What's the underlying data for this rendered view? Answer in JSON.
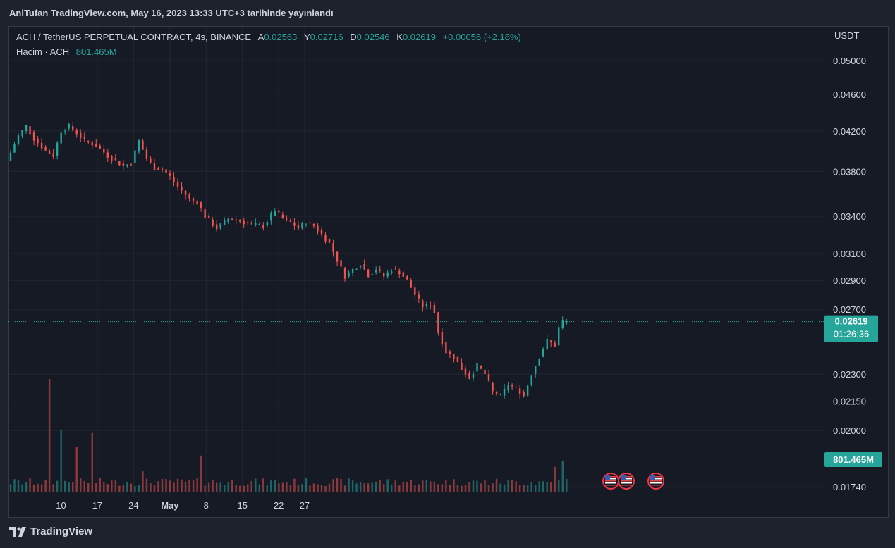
{
  "header": {
    "published": "AnlTufan TradingView.com, May 16, 2023 13:33 UTC+3 tarihinde yayınlandı"
  },
  "legend": {
    "symbol": "ACH / TetherUS PERPETUAL CONTRACT, 4s, BINANCE",
    "open_label": "A",
    "open_value": "0.02563",
    "high_label": "Y",
    "high_value": "0.02716",
    "low_label": "D",
    "low_value": "0.02546",
    "close_label": "K",
    "close_value": "0.02619",
    "change": "+0.00056 (+2.18%)",
    "volume_label": "Hacim · ACH",
    "volume_value": "801.465M"
  },
  "price_axis": {
    "currency": "USDT",
    "ticks": [
      "0.05000",
      "0.04600",
      "0.04200",
      "0.03800",
      "0.03400",
      "0.03100",
      "0.02900",
      "0.02700",
      "0.02300",
      "0.02150",
      "0.02000",
      "0.01740"
    ],
    "last_price": "0.02619",
    "countdown": "01:26:36",
    "volume_badge": "801.465M"
  },
  "time_axis": {
    "ticks": [
      "10",
      "17",
      "24",
      "May",
      "8",
      "15",
      "22",
      "27"
    ]
  },
  "footer": {
    "brand": "TradingView"
  },
  "colors": {
    "up": "#26a69a",
    "down": "#ef5350",
    "bg": "#161a25",
    "grid": "#252934"
  },
  "chart_data": {
    "type": "candlestick",
    "title": "ACH / TetherUS PERPETUAL CONTRACT, 4s, BINANCE",
    "ylabel": "USDT",
    "scale": "log",
    "ylim": [
      0.017,
      0.052
    ],
    "x_ticks": [
      "10",
      "17",
      "24",
      "May",
      "8",
      "15",
      "22",
      "27"
    ],
    "price_path": [
      [
        0,
        0.039
      ],
      [
        3,
        0.0415
      ],
      [
        5,
        0.0425
      ],
      [
        7,
        0.0412
      ],
      [
        10,
        0.04
      ],
      [
        12,
        0.0395
      ],
      [
        14,
        0.042
      ],
      [
        16,
        0.0425
      ],
      [
        18,
        0.0418
      ],
      [
        20,
        0.041
      ],
      [
        23,
        0.0405
      ],
      [
        26,
        0.0395
      ],
      [
        28,
        0.039
      ],
      [
        30,
        0.0385
      ],
      [
        32,
        0.0388
      ],
      [
        34,
        0.041
      ],
      [
        36,
        0.0392
      ],
      [
        38,
        0.0383
      ],
      [
        40,
        0.0382
      ],
      [
        42,
        0.0375
      ],
      [
        44,
        0.0366
      ],
      [
        47,
        0.0355
      ],
      [
        49,
        0.0352
      ],
      [
        51,
        0.034
      ],
      [
        54,
        0.033
      ],
      [
        57,
        0.0338
      ],
      [
        60,
        0.0336
      ],
      [
        63,
        0.0333
      ],
      [
        66,
        0.0332
      ],
      [
        69,
        0.0345
      ],
      [
        71,
        0.0338
      ],
      [
        73,
        0.0335
      ],
      [
        75,
        0.033
      ],
      [
        77,
        0.0335
      ],
      [
        79,
        0.0332
      ],
      [
        81,
        0.0325
      ],
      [
        83,
        0.0318
      ],
      [
        85,
        0.0305
      ],
      [
        87,
        0.0293
      ],
      [
        89,
        0.0298
      ],
      [
        91,
        0.0302
      ],
      [
        93,
        0.0294
      ],
      [
        95,
        0.0298
      ],
      [
        97,
        0.0293
      ],
      [
        99,
        0.0298
      ],
      [
        101,
        0.0296
      ],
      [
        103,
        0.029
      ],
      [
        105,
        0.028
      ],
      [
        107,
        0.0272
      ],
      [
        109,
        0.0273
      ],
      [
        110,
        0.0268
      ],
      [
        111,
        0.0255
      ],
      [
        113,
        0.0243
      ],
      [
        115,
        0.024
      ],
      [
        117,
        0.0233
      ],
      [
        119,
        0.0228
      ],
      [
        121,
        0.0235
      ],
      [
        123,
        0.023
      ],
      [
        125,
        0.022
      ],
      [
        127,
        0.0218
      ],
      [
        129,
        0.0224
      ],
      [
        131,
        0.0222
      ],
      [
        133,
        0.0218
      ],
      [
        135,
        0.023
      ],
      [
        137,
        0.024
      ],
      [
        139,
        0.025
      ],
      [
        141,
        0.0247
      ],
      [
        142,
        0.0258
      ],
      [
        143,
        0.02619
      ]
    ],
    "volume": {
      "latest": "801.465M",
      "spike_bars": [
        [
          10,
          1.0
        ],
        [
          13,
          0.55
        ],
        [
          17,
          0.4
        ],
        [
          21,
          0.52
        ],
        [
          34,
          0.18
        ],
        [
          49,
          0.32
        ],
        [
          140,
          0.22
        ],
        [
          142,
          0.27
        ]
      ]
    },
    "last_price": 0.02619
  }
}
